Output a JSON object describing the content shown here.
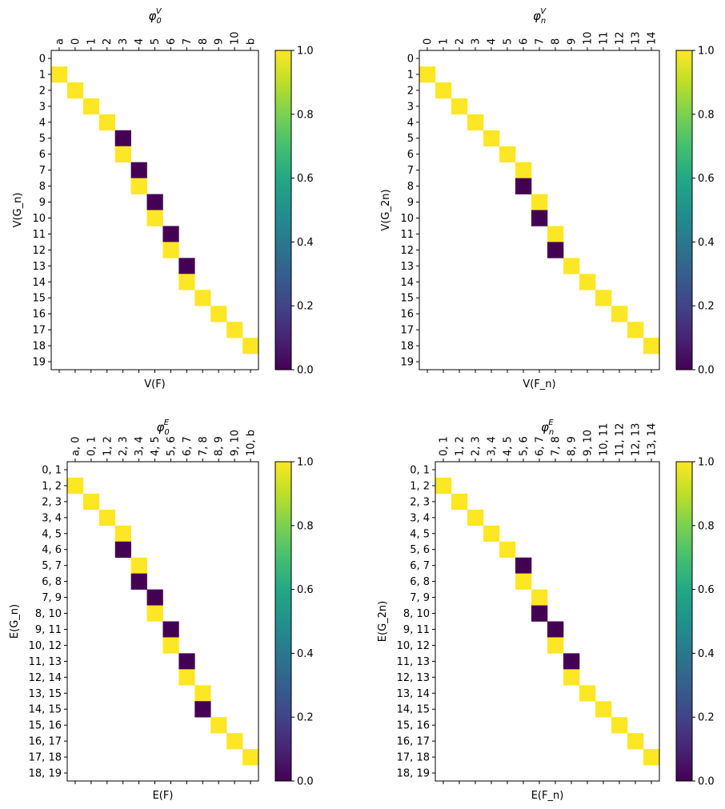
{
  "chart_data": [
    {
      "type": "heatmap",
      "title": {
        "base": "φ",
        "sub": "0",
        "sup": "V"
      },
      "xlabel": "V(F)",
      "ylabel": "V(G_n)",
      "x_tick_labels": [
        "a",
        "0",
        "1",
        "2",
        "3",
        "4",
        "5",
        "6",
        "7",
        "8",
        "9",
        "10",
        "b"
      ],
      "y_tick_labels": [
        "0",
        "1",
        "2",
        "3",
        "4",
        "5",
        "6",
        "7",
        "8",
        "9",
        "10",
        "11",
        "12",
        "13",
        "14",
        "15",
        "16",
        "17",
        "18",
        "19"
      ],
      "cells": [
        [
          1,
          0,
          1
        ],
        [
          2,
          1,
          1
        ],
        [
          3,
          2,
          1
        ],
        [
          4,
          3,
          1
        ],
        [
          5,
          4,
          0
        ],
        [
          6,
          4,
          1
        ],
        [
          7,
          5,
          0
        ],
        [
          8,
          5,
          1
        ],
        [
          9,
          6,
          0
        ],
        [
          10,
          6,
          1
        ],
        [
          11,
          7,
          0
        ],
        [
          12,
          7,
          1
        ],
        [
          13,
          8,
          0
        ],
        [
          14,
          8,
          1
        ],
        [
          15,
          9,
          1
        ],
        [
          16,
          10,
          1
        ],
        [
          17,
          11,
          1
        ],
        [
          18,
          12,
          1
        ]
      ],
      "colorbar": {
        "colormap": "viridis",
        "range": [
          0,
          1
        ],
        "ticks": [
          "0.0",
          "0.2",
          "0.4",
          "0.6",
          "0.8",
          "1.0"
        ]
      }
    },
    {
      "type": "heatmap",
      "title": {
        "base": "φ",
        "sub": "n",
        "sup": "V"
      },
      "xlabel": "V(F_n)",
      "ylabel": "V(G_2n)",
      "x_tick_labels": [
        "0",
        "1",
        "2",
        "3",
        "4",
        "5",
        "6",
        "7",
        "8",
        "9",
        "10",
        "11",
        "12",
        "13",
        "14"
      ],
      "y_tick_labels": [
        "0",
        "1",
        "2",
        "3",
        "4",
        "5",
        "6",
        "7",
        "8",
        "9",
        "10",
        "11",
        "12",
        "13",
        "14",
        "15",
        "16",
        "17",
        "18",
        "19"
      ],
      "cells": [
        [
          1,
          0,
          1
        ],
        [
          2,
          1,
          1
        ],
        [
          3,
          2,
          1
        ],
        [
          4,
          3,
          1
        ],
        [
          5,
          4,
          1
        ],
        [
          6,
          5,
          1
        ],
        [
          7,
          6,
          1
        ],
        [
          8,
          6,
          0
        ],
        [
          9,
          7,
          1
        ],
        [
          10,
          7,
          0
        ],
        [
          11,
          8,
          1
        ],
        [
          12,
          8,
          0
        ],
        [
          13,
          9,
          1
        ],
        [
          14,
          10,
          1
        ],
        [
          15,
          11,
          1
        ],
        [
          16,
          12,
          1
        ],
        [
          17,
          13,
          1
        ],
        [
          18,
          14,
          1
        ]
      ],
      "colorbar": {
        "colormap": "viridis",
        "range": [
          0,
          1
        ],
        "ticks": [
          "0.0",
          "0.2",
          "0.4",
          "0.6",
          "0.8",
          "1.0"
        ]
      }
    },
    {
      "type": "heatmap",
      "title": {
        "base": "φ",
        "sub": "0",
        "sup": "E"
      },
      "xlabel": "E(F)",
      "ylabel": "E(G_n)",
      "x_tick_labels": [
        "a, 0",
        "0, 1",
        "1, 2",
        "2, 3",
        "3, 4",
        "4, 5",
        "5, 6",
        "6, 7",
        "7, 8",
        "8, 9",
        "9, 10",
        "10, b"
      ],
      "y_tick_labels": [
        "0, 1",
        "1, 2",
        "2, 3",
        "3, 4",
        "4, 5",
        "4, 6",
        "5, 7",
        "6, 8",
        "7, 9",
        "8, 10",
        "9, 11",
        "10, 12",
        "11, 13",
        "12, 14",
        "13, 15",
        "14, 15",
        "15, 16",
        "16, 17",
        "17, 18",
        "18, 19"
      ],
      "cells": [
        [
          1,
          0,
          1
        ],
        [
          2,
          1,
          1
        ],
        [
          3,
          2,
          1
        ],
        [
          4,
          3,
          1
        ],
        [
          5,
          3,
          0
        ],
        [
          6,
          4,
          1
        ],
        [
          7,
          4,
          0
        ],
        [
          8,
          5,
          0
        ],
        [
          9,
          5,
          1
        ],
        [
          10,
          6,
          0
        ],
        [
          11,
          6,
          1
        ],
        [
          12,
          7,
          0
        ],
        [
          13,
          7,
          1
        ],
        [
          14,
          8,
          1
        ],
        [
          15,
          8,
          0
        ],
        [
          16,
          9,
          1
        ],
        [
          17,
          10,
          1
        ],
        [
          18,
          11,
          1
        ]
      ],
      "colorbar": {
        "colormap": "viridis",
        "range": [
          0,
          1
        ],
        "ticks": [
          "0.0",
          "0.2",
          "0.4",
          "0.6",
          "0.8",
          "1.0"
        ]
      }
    },
    {
      "type": "heatmap",
      "title": {
        "base": "φ",
        "sub": "n",
        "sup": "E"
      },
      "xlabel": "E(F_n)",
      "ylabel": "E(G_2n)",
      "x_tick_labels": [
        "0, 1",
        "1, 2",
        "2, 3",
        "3, 4",
        "4, 5",
        "5, 6",
        "6, 7",
        "7, 8",
        "8, 9",
        "9, 10",
        "10, 11",
        "11, 12",
        "12, 13",
        "13, 14"
      ],
      "y_tick_labels": [
        "0, 1",
        "1, 2",
        "2, 3",
        "3, 4",
        "4, 5",
        "5, 6",
        "6, 7",
        "6, 8",
        "7, 9",
        "8, 10",
        "9, 11",
        "10, 12",
        "11, 13",
        "12, 13",
        "13, 14",
        "14, 15",
        "15, 16",
        "16, 17",
        "17, 18",
        "18, 19"
      ],
      "cells": [
        [
          1,
          0,
          1
        ],
        [
          2,
          1,
          1
        ],
        [
          3,
          2,
          1
        ],
        [
          4,
          3,
          1
        ],
        [
          5,
          4,
          1
        ],
        [
          6,
          5,
          0
        ],
        [
          7,
          5,
          1
        ],
        [
          8,
          6,
          1
        ],
        [
          9,
          6,
          0
        ],
        [
          10,
          7,
          0
        ],
        [
          11,
          7,
          1
        ],
        [
          12,
          8,
          0
        ],
        [
          13,
          8,
          1
        ],
        [
          14,
          9,
          1
        ],
        [
          15,
          10,
          1
        ],
        [
          16,
          11,
          1
        ],
        [
          17,
          12,
          1
        ],
        [
          18,
          13,
          1
        ]
      ],
      "colorbar": {
        "colormap": "viridis",
        "range": [
          0,
          1
        ],
        "ticks": [
          "0.0",
          "0.2",
          "0.4",
          "0.6",
          "0.8",
          "1.0"
        ]
      }
    }
  ]
}
